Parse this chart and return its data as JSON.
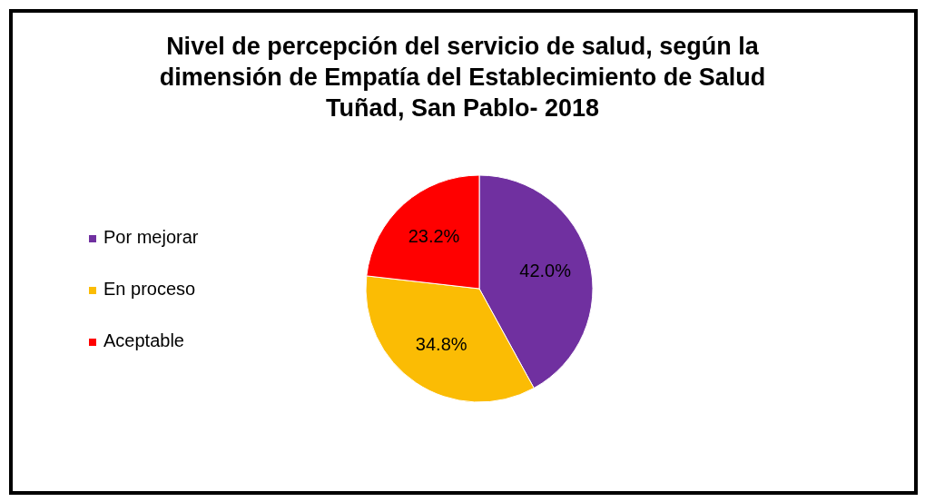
{
  "chart_data": {
    "type": "pie",
    "title": "Nivel de percepción del servicio de salud, según la\ndimensión de Empatía del Establecimiento de Salud\nTuñad, San Pablo- 2018",
    "categories": [
      "Por mejorar",
      "En proceso",
      "Aceptable"
    ],
    "values": [
      42.0,
      34.8,
      23.2
    ],
    "colors": [
      "#7030a0",
      "#fbbc04",
      "#ff0000"
    ],
    "value_labels": [
      "42.0%",
      "34.8%",
      "23.2%"
    ],
    "legend": "left"
  }
}
